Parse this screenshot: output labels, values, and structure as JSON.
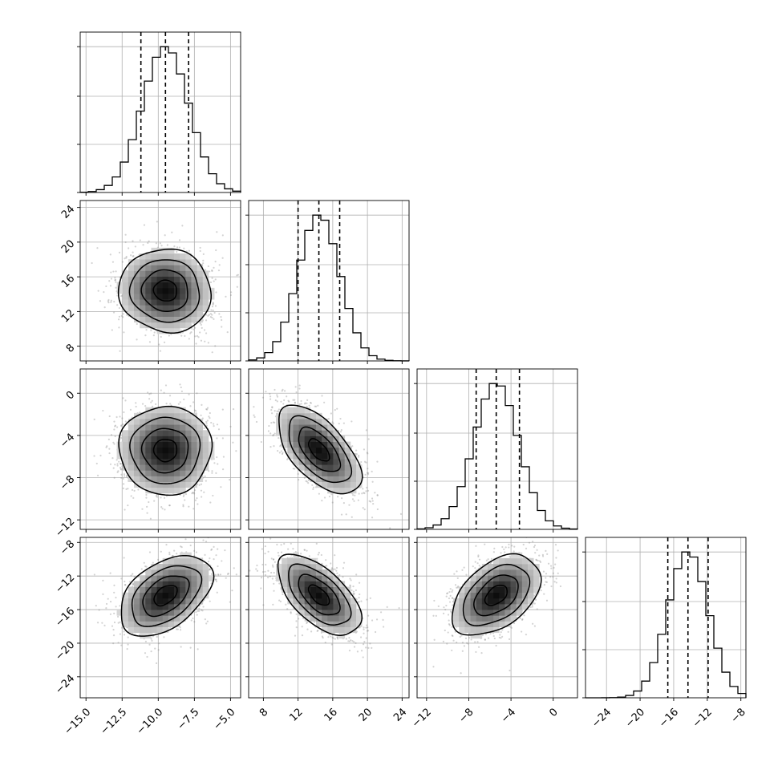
{
  "chart_data": {
    "type": "corner",
    "title": "",
    "n_params": 4,
    "params": [
      {
        "mean": -9.5,
        "sd": 1.6,
        "lo": -11.2,
        "med": -9.5,
        "hi": -7.9,
        "range": [
          -15.4,
          -4.3
        ],
        "ticks": [
          -15.0,
          -12.5,
          -10.0,
          -7.5,
          -5.0
        ],
        "tick_labels": [
          "−15.0",
          "−12.5",
          "−10.0",
          "−7.5",
          "−5.0"
        ]
      },
      {
        "mean": 14.4,
        "sd": 2.4,
        "lo": 12.0,
        "med": 14.4,
        "hi": 16.8,
        "range": [
          6.3,
          24.8
        ],
        "ticks": [
          8,
          12,
          16,
          20,
          24
        ],
        "tick_labels": [
          "8",
          "12",
          "16",
          "20",
          "24"
        ]
      },
      {
        "mean": -5.4,
        "sd": 2.1,
        "lo": -7.3,
        "med": -5.4,
        "hi": -3.2,
        "range": [
          -12.9,
          2.3
        ],
        "ticks": [
          -12,
          -8,
          -4,
          0
        ],
        "tick_labels": [
          "−12",
          "−8",
          "−4",
          "0"
        ]
      },
      {
        "mean": -14.3,
        "sd": 2.4,
        "lo": -16.7,
        "med": -14.3,
        "hi": -11.9,
        "range": [
          -26.5,
          -7.4
        ],
        "ticks": [
          -24,
          -20,
          -16,
          -12,
          -8
        ],
        "tick_labels": [
          "−24",
          "−20",
          "−16",
          "−12",
          "−8"
        ]
      }
    ],
    "correlations": [
      {
        "i": 1,
        "j": 0,
        "rho": -0.05
      },
      {
        "i": 2,
        "j": 0,
        "rho": 0.0
      },
      {
        "i": 2,
        "j": 1,
        "rho": -0.6
      },
      {
        "i": 3,
        "j": 0,
        "rho": 0.45
      },
      {
        "i": 3,
        "j": 1,
        "rho": -0.6
      },
      {
        "i": 3,
        "j": 2,
        "rho": 0.45
      }
    ],
    "histogram_bins": 20,
    "contour_levels": [
      0.118,
      0.393,
      0.675,
      0.864
    ],
    "quantile_lines": "dashed",
    "grid": true,
    "colors": {
      "line": "#000000",
      "scatter": "#808080",
      "grid": "#b0b0b0"
    }
  }
}
